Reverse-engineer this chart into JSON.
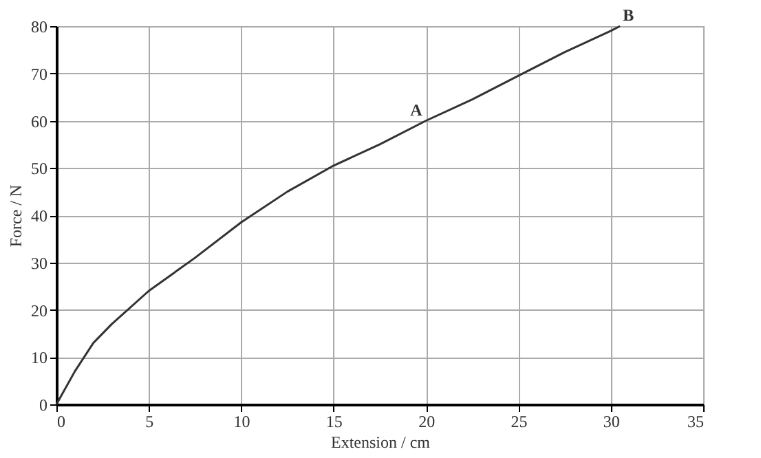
{
  "chart_data": {
    "type": "line",
    "xlabel": "Extension / cm",
    "ylabel": "Force / N",
    "x": [
      0,
      1,
      2,
      3,
      5,
      7.5,
      10,
      12.5,
      15,
      17.5,
      20,
      22.5,
      25,
      27.5,
      30,
      30.5
    ],
    "series": [
      {
        "color": "#333333",
        "values": [
          0,
          7,
          13,
          17,
          24,
          31,
          38.5,
          45,
          50.5,
          55,
          60,
          64.5,
          69.5,
          74.5,
          79,
          80
        ]
      }
    ],
    "xlim": [
      0,
      35
    ],
    "xticks": [
      0,
      5,
      10,
      15,
      20,
      25,
      30,
      35
    ],
    "ylim": [
      0,
      80
    ],
    "yticks": [
      0,
      10,
      20,
      30,
      40,
      50,
      60,
      70,
      80
    ],
    "grid": true,
    "marker": "none",
    "line_style": "solid",
    "annotations": [
      {
        "text": "A",
        "x": 19,
        "y": 60
      },
      {
        "text": "B",
        "x": 30.5,
        "y": 80
      }
    ]
  }
}
